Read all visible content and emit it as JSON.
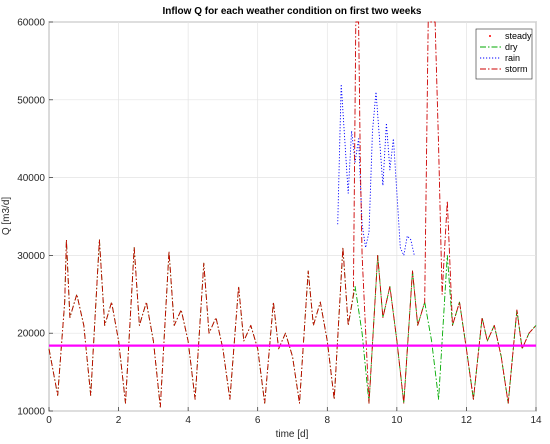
{
  "chart_data": {
    "type": "line",
    "title": "Inflow Q for each weather condition on first two weeks",
    "xlabel": "time [d]",
    "ylabel": "Q [m3/d]",
    "xlim": [
      0,
      14
    ],
    "ylim": [
      10000,
      60000
    ],
    "x_ticks": [
      0,
      2,
      4,
      6,
      8,
      10,
      12,
      14
    ],
    "x_tick_labels": [
      "0",
      "2",
      "4",
      "6",
      "8",
      "10",
      "12",
      "14"
    ],
    "y_ticks": [
      10000,
      20000,
      30000,
      40000,
      50000,
      60000
    ],
    "y_tick_labels": [
      "10000",
      "20000",
      "30000",
      "40000",
      "50000",
      "60000"
    ],
    "grid": true,
    "legend_position": "top-right",
    "reference_line": {
      "y": 18400,
      "color": "#ff00ff"
    },
    "series": [
      {
        "name": "steady",
        "color": "#ff0000",
        "style": "dot",
        "value": 18400
      },
      {
        "name": "dry",
        "color": "#00aa00",
        "style": "dashdot",
        "points": [
          [
            0,
            18000
          ],
          [
            0.25,
            12000
          ],
          [
            0.45,
            24000
          ],
          [
            0.5,
            32000
          ],
          [
            0.6,
            22000
          ],
          [
            0.8,
            25000
          ],
          [
            1.0,
            21000
          ],
          [
            1.2,
            12000
          ],
          [
            1.45,
            32000
          ],
          [
            1.6,
            21000
          ],
          [
            1.8,
            24000
          ],
          [
            2.0,
            19000
          ],
          [
            2.2,
            11000
          ],
          [
            2.45,
            31000
          ],
          [
            2.6,
            21000
          ],
          [
            2.8,
            24000
          ],
          [
            3.0,
            19000
          ],
          [
            3.2,
            10500
          ],
          [
            3.45,
            30500
          ],
          [
            3.6,
            21000
          ],
          [
            3.8,
            23000
          ],
          [
            4.0,
            19000
          ],
          [
            4.2,
            11500
          ],
          [
            4.45,
            29000
          ],
          [
            4.6,
            20000
          ],
          [
            4.8,
            22000
          ],
          [
            5.0,
            18000
          ],
          [
            5.2,
            11500
          ],
          [
            5.45,
            26000
          ],
          [
            5.6,
            19000
          ],
          [
            5.8,
            21000
          ],
          [
            6.0,
            18000
          ],
          [
            6.2,
            11000
          ],
          [
            6.45,
            24000
          ],
          [
            6.6,
            18000
          ],
          [
            6.8,
            20000
          ],
          [
            7.0,
            17000
          ],
          [
            7.2,
            11000
          ],
          [
            7.45,
            28000
          ],
          [
            7.6,
            21000
          ],
          [
            7.8,
            24000
          ],
          [
            8.0,
            19000
          ],
          [
            8.2,
            11500
          ],
          [
            8.45,
            31000
          ],
          [
            8.6,
            21000
          ],
          [
            8.8,
            26000
          ],
          [
            9.0,
            20000
          ],
          [
            9.2,
            11000
          ],
          [
            9.45,
            30000
          ],
          [
            9.6,
            22000
          ],
          [
            9.8,
            26000
          ],
          [
            10.0,
            19000
          ],
          [
            10.2,
            11000
          ],
          [
            10.45,
            28000
          ],
          [
            10.6,
            21000
          ],
          [
            10.8,
            24000
          ],
          [
            11.0,
            19000
          ],
          [
            11.2,
            11500
          ],
          [
            11.45,
            30000
          ],
          [
            11.6,
            21000
          ],
          [
            11.8,
            24000
          ],
          [
            12.0,
            18000
          ],
          [
            12.2,
            11500
          ],
          [
            12.45,
            22000
          ],
          [
            12.6,
            19000
          ],
          [
            12.8,
            21000
          ],
          [
            13.0,
            17000
          ],
          [
            13.2,
            11000
          ],
          [
            13.45,
            23000
          ],
          [
            13.6,
            18000
          ],
          [
            13.8,
            20000
          ],
          [
            14.0,
            21000
          ]
        ]
      },
      {
        "name": "rain",
        "color": "#0000ff",
        "style": "dot",
        "points": [
          [
            8.3,
            34000
          ],
          [
            8.4,
            52000
          ],
          [
            8.5,
            45000
          ],
          [
            8.6,
            38000
          ],
          [
            8.7,
            46000
          ],
          [
            8.8,
            42000
          ],
          [
            8.9,
            45000
          ],
          [
            9.0,
            34000
          ],
          [
            9.1,
            31000
          ],
          [
            9.2,
            33000
          ],
          [
            9.3,
            46000
          ],
          [
            9.4,
            51000
          ],
          [
            9.5,
            45000
          ],
          [
            9.6,
            39000
          ],
          [
            9.7,
            47000
          ],
          [
            9.8,
            41000
          ],
          [
            9.9,
            45000
          ],
          [
            10.0,
            38000
          ],
          [
            10.1,
            31000
          ],
          [
            10.2,
            30000
          ],
          [
            10.3,
            32500
          ],
          [
            10.4,
            32000
          ],
          [
            10.5,
            30000
          ]
        ]
      },
      {
        "name": "storm",
        "color": "#cc0000",
        "style": "dashdot",
        "points": [
          [
            0,
            18000
          ],
          [
            0.25,
            12000
          ],
          [
            0.45,
            24000
          ],
          [
            0.5,
            32000
          ],
          [
            0.6,
            22000
          ],
          [
            0.8,
            25000
          ],
          [
            1.0,
            21000
          ],
          [
            1.2,
            12000
          ],
          [
            1.45,
            32000
          ],
          [
            1.6,
            21000
          ],
          [
            1.8,
            24000
          ],
          [
            2.0,
            19000
          ],
          [
            2.2,
            11000
          ],
          [
            2.45,
            31000
          ],
          [
            2.6,
            21000
          ],
          [
            2.8,
            24000
          ],
          [
            3.0,
            19000
          ],
          [
            3.2,
            10500
          ],
          [
            3.45,
            30500
          ],
          [
            3.6,
            21000
          ],
          [
            3.8,
            23000
          ],
          [
            4.0,
            19000
          ],
          [
            4.2,
            11500
          ],
          [
            4.45,
            29000
          ],
          [
            4.6,
            20000
          ],
          [
            4.8,
            22000
          ],
          [
            5.0,
            18000
          ],
          [
            5.2,
            11500
          ],
          [
            5.45,
            26000
          ],
          [
            5.6,
            19000
          ],
          [
            5.8,
            21000
          ],
          [
            6.0,
            18000
          ],
          [
            6.2,
            11000
          ],
          [
            6.45,
            24000
          ],
          [
            6.6,
            18000
          ],
          [
            6.8,
            20000
          ],
          [
            7.0,
            17000
          ],
          [
            7.2,
            11000
          ],
          [
            7.45,
            28000
          ],
          [
            7.6,
            21000
          ],
          [
            7.8,
            24000
          ],
          [
            8.0,
            19000
          ],
          [
            8.2,
            11500
          ],
          [
            8.45,
            31000
          ],
          [
            8.6,
            21000
          ],
          [
            8.75,
            25000
          ],
          [
            8.82,
            60000
          ],
          [
            8.9,
            60000
          ],
          [
            8.95,
            42000
          ],
          [
            9.0,
            30000
          ],
          [
            9.2,
            11000
          ],
          [
            9.45,
            30000
          ],
          [
            9.6,
            22000
          ],
          [
            9.8,
            26000
          ],
          [
            10.0,
            19000
          ],
          [
            10.2,
            11000
          ],
          [
            10.45,
            28000
          ],
          [
            10.6,
            21000
          ],
          [
            10.8,
            24000
          ],
          [
            10.9,
            60000
          ],
          [
            11.1,
            60000
          ],
          [
            11.2,
            44000
          ],
          [
            11.3,
            25000
          ],
          [
            11.45,
            37000
          ],
          [
            11.6,
            21000
          ],
          [
            11.8,
            24000
          ],
          [
            12.0,
            18000
          ],
          [
            12.2,
            11500
          ],
          [
            12.45,
            22000
          ],
          [
            12.6,
            19000
          ],
          [
            12.8,
            21000
          ],
          [
            13.0,
            17000
          ],
          [
            13.2,
            11000
          ],
          [
            13.45,
            23000
          ],
          [
            13.6,
            18000
          ],
          [
            13.8,
            20000
          ],
          [
            14.0,
            21000
          ]
        ]
      }
    ]
  }
}
